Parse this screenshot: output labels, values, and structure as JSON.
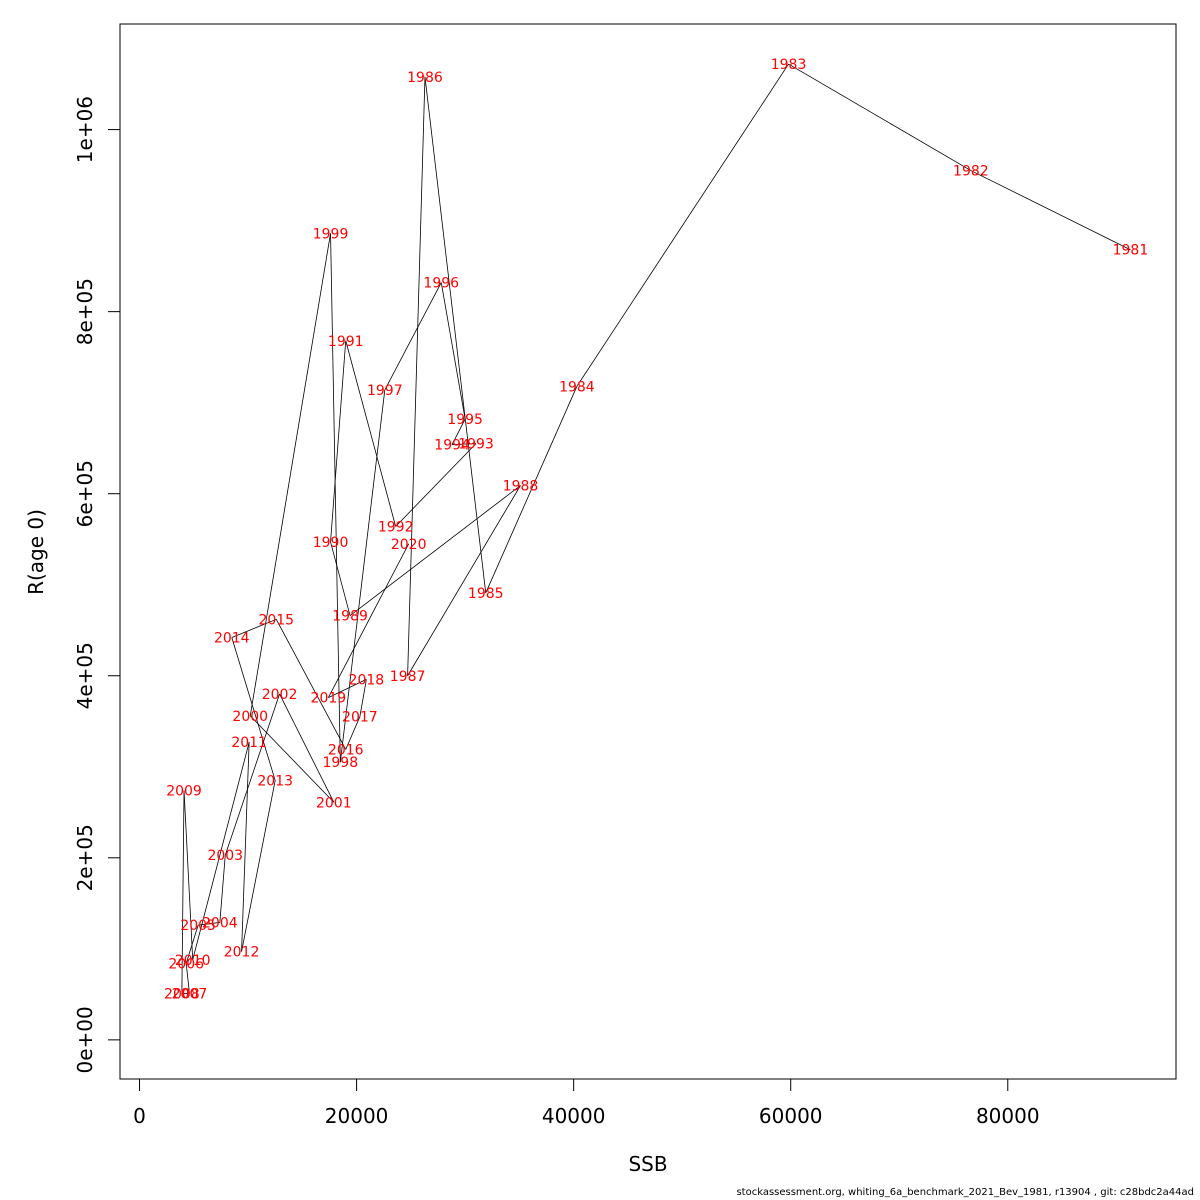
{
  "chart_data": {
    "type": "line",
    "xlabel": "SSB",
    "ylabel": "R(age 0)",
    "xlim": [
      -1800,
      95500
    ],
    "ylim": [
      -43000,
      1116000
    ],
    "x_ticks": [
      {
        "value": 0,
        "label": "0"
      },
      {
        "value": 20000,
        "label": "20000"
      },
      {
        "value": 40000,
        "label": "40000"
      },
      {
        "value": 60000,
        "label": "60000"
      },
      {
        "value": 80000,
        "label": "80000"
      }
    ],
    "y_ticks": [
      {
        "value": 0,
        "label": "0e+00"
      },
      {
        "value": 200000,
        "label": "2e+05"
      },
      {
        "value": 400000,
        "label": "4e+05"
      },
      {
        "value": 600000,
        "label": "6e+05"
      },
      {
        "value": 800000,
        "label": "8e+05"
      },
      {
        "value": 1000000,
        "label": "1e+06"
      }
    ],
    "grid": false,
    "line_color": "#000000",
    "label_color": "#ff0000",
    "points": [
      {
        "year": "1981",
        "x": 91300,
        "y": 868000
      },
      {
        "year": "1982",
        "x": 76600,
        "y": 955000
      },
      {
        "year": "1983",
        "x": 59800,
        "y": 1072000
      },
      {
        "year": "1984",
        "x": 40300,
        "y": 718000
      },
      {
        "year": "1985",
        "x": 31900,
        "y": 491000
      },
      {
        "year": "1986",
        "x": 26300,
        "y": 1058000
      },
      {
        "year": "1987",
        "x": 24700,
        "y": 400000
      },
      {
        "year": "1988",
        "x": 35100,
        "y": 609000
      },
      {
        "year": "1989",
        "x": 19400,
        "y": 466000
      },
      {
        "year": "1990",
        "x": 17600,
        "y": 547000
      },
      {
        "year": "1991",
        "x": 19000,
        "y": 768000
      },
      {
        "year": "1992",
        "x": 23600,
        "y": 564000
      },
      {
        "year": "1993",
        "x": 31000,
        "y": 655000
      },
      {
        "year": "1994",
        "x": 28800,
        "y": 654000
      },
      {
        "year": "1995",
        "x": 30000,
        "y": 682000
      },
      {
        "year": "1996",
        "x": 27800,
        "y": 832000
      },
      {
        "year": "1997",
        "x": 22600,
        "y": 714000
      },
      {
        "year": "1998",
        "x": 18500,
        "y": 305000
      },
      {
        "year": "1999",
        "x": 17600,
        "y": 886000
      },
      {
        "year": "2000",
        "x": 10200,
        "y": 356000
      },
      {
        "year": "2001",
        "x": 17900,
        "y": 261000
      },
      {
        "year": "2002",
        "x": 12900,
        "y": 380000
      },
      {
        "year": "2003",
        "x": 7900,
        "y": 203000
      },
      {
        "year": "2004",
        "x": 7400,
        "y": 129000
      },
      {
        "year": "2005",
        "x": 5400,
        "y": 126000
      },
      {
        "year": "2006",
        "x": 4300,
        "y": 84000
      },
      {
        "year": "2007",
        "x": 4600,
        "y": 51000
      },
      {
        "year": "2008",
        "x": 3900,
        "y": 51000
      },
      {
        "year": "2009",
        "x": 4100,
        "y": 274000
      },
      {
        "year": "2010",
        "x": 4900,
        "y": 88000
      },
      {
        "year": "2011",
        "x": 10100,
        "y": 327000
      },
      {
        "year": "2012",
        "x": 9400,
        "y": 97000
      },
      {
        "year": "2013",
        "x": 12500,
        "y": 285000
      },
      {
        "year": "2014",
        "x": 8500,
        "y": 442000
      },
      {
        "year": "2015",
        "x": 12600,
        "y": 462000
      },
      {
        "year": "2016",
        "x": 19000,
        "y": 319000
      },
      {
        "year": "2017",
        "x": 20300,
        "y": 355000
      },
      {
        "year": "2018",
        "x": 20900,
        "y": 396000
      },
      {
        "year": "2019",
        "x": 17400,
        "y": 376000
      },
      {
        "year": "2020",
        "x": 24800,
        "y": 545000
      }
    ]
  },
  "footer_text": "stockassessment.org, whiting_6a_benchmark_2021_Bev_1981, r13904 , git: c28bdc2a44ad"
}
